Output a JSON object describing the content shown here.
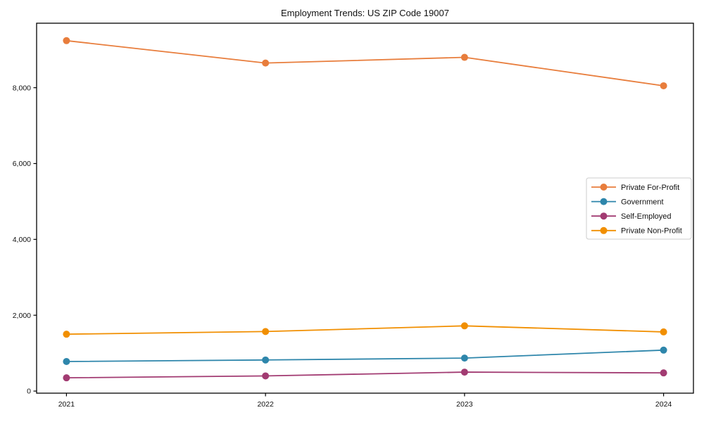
{
  "title": "Employment Trends: US ZIP Code 19007",
  "chart_data": {
    "type": "line",
    "title": "Employment Trends: US ZIP Code 19007",
    "xlabel": "",
    "ylabel": "",
    "x": [
      2021,
      2022,
      2023,
      2024
    ],
    "x_tick_labels": [
      "2021",
      "2022",
      "2023",
      "2024"
    ],
    "y_tick_values": [
      0,
      2000,
      4000,
      6000,
      8000
    ],
    "y_tick_labels": [
      "0",
      "2,000",
      "4,000",
      "6,000",
      "8,000"
    ],
    "xlim": [
      2020.85,
      2024.15
    ],
    "ylim": [
      -55,
      9700
    ],
    "grid": false,
    "legend_position": "center-right",
    "marker": "circle",
    "series": [
      {
        "name": "Private For-Profit",
        "color": "#E87D3C",
        "values": [
          9240,
          8650,
          8800,
          8050
        ]
      },
      {
        "name": "Government",
        "color": "#2E86AB",
        "values": [
          780,
          820,
          870,
          1080
        ]
      },
      {
        "name": "Self-Employed",
        "color": "#A23B72",
        "values": [
          350,
          400,
          500,
          480
        ]
      },
      {
        "name": "Private Non-Profit",
        "color": "#F18F01",
        "values": [
          1500,
          1570,
          1720,
          1560
        ]
      }
    ],
    "colors": {
      "spine": "#000000",
      "tick_label": "#111111",
      "legend_border": "#cccccc",
      "background": "#ffffff"
    }
  }
}
